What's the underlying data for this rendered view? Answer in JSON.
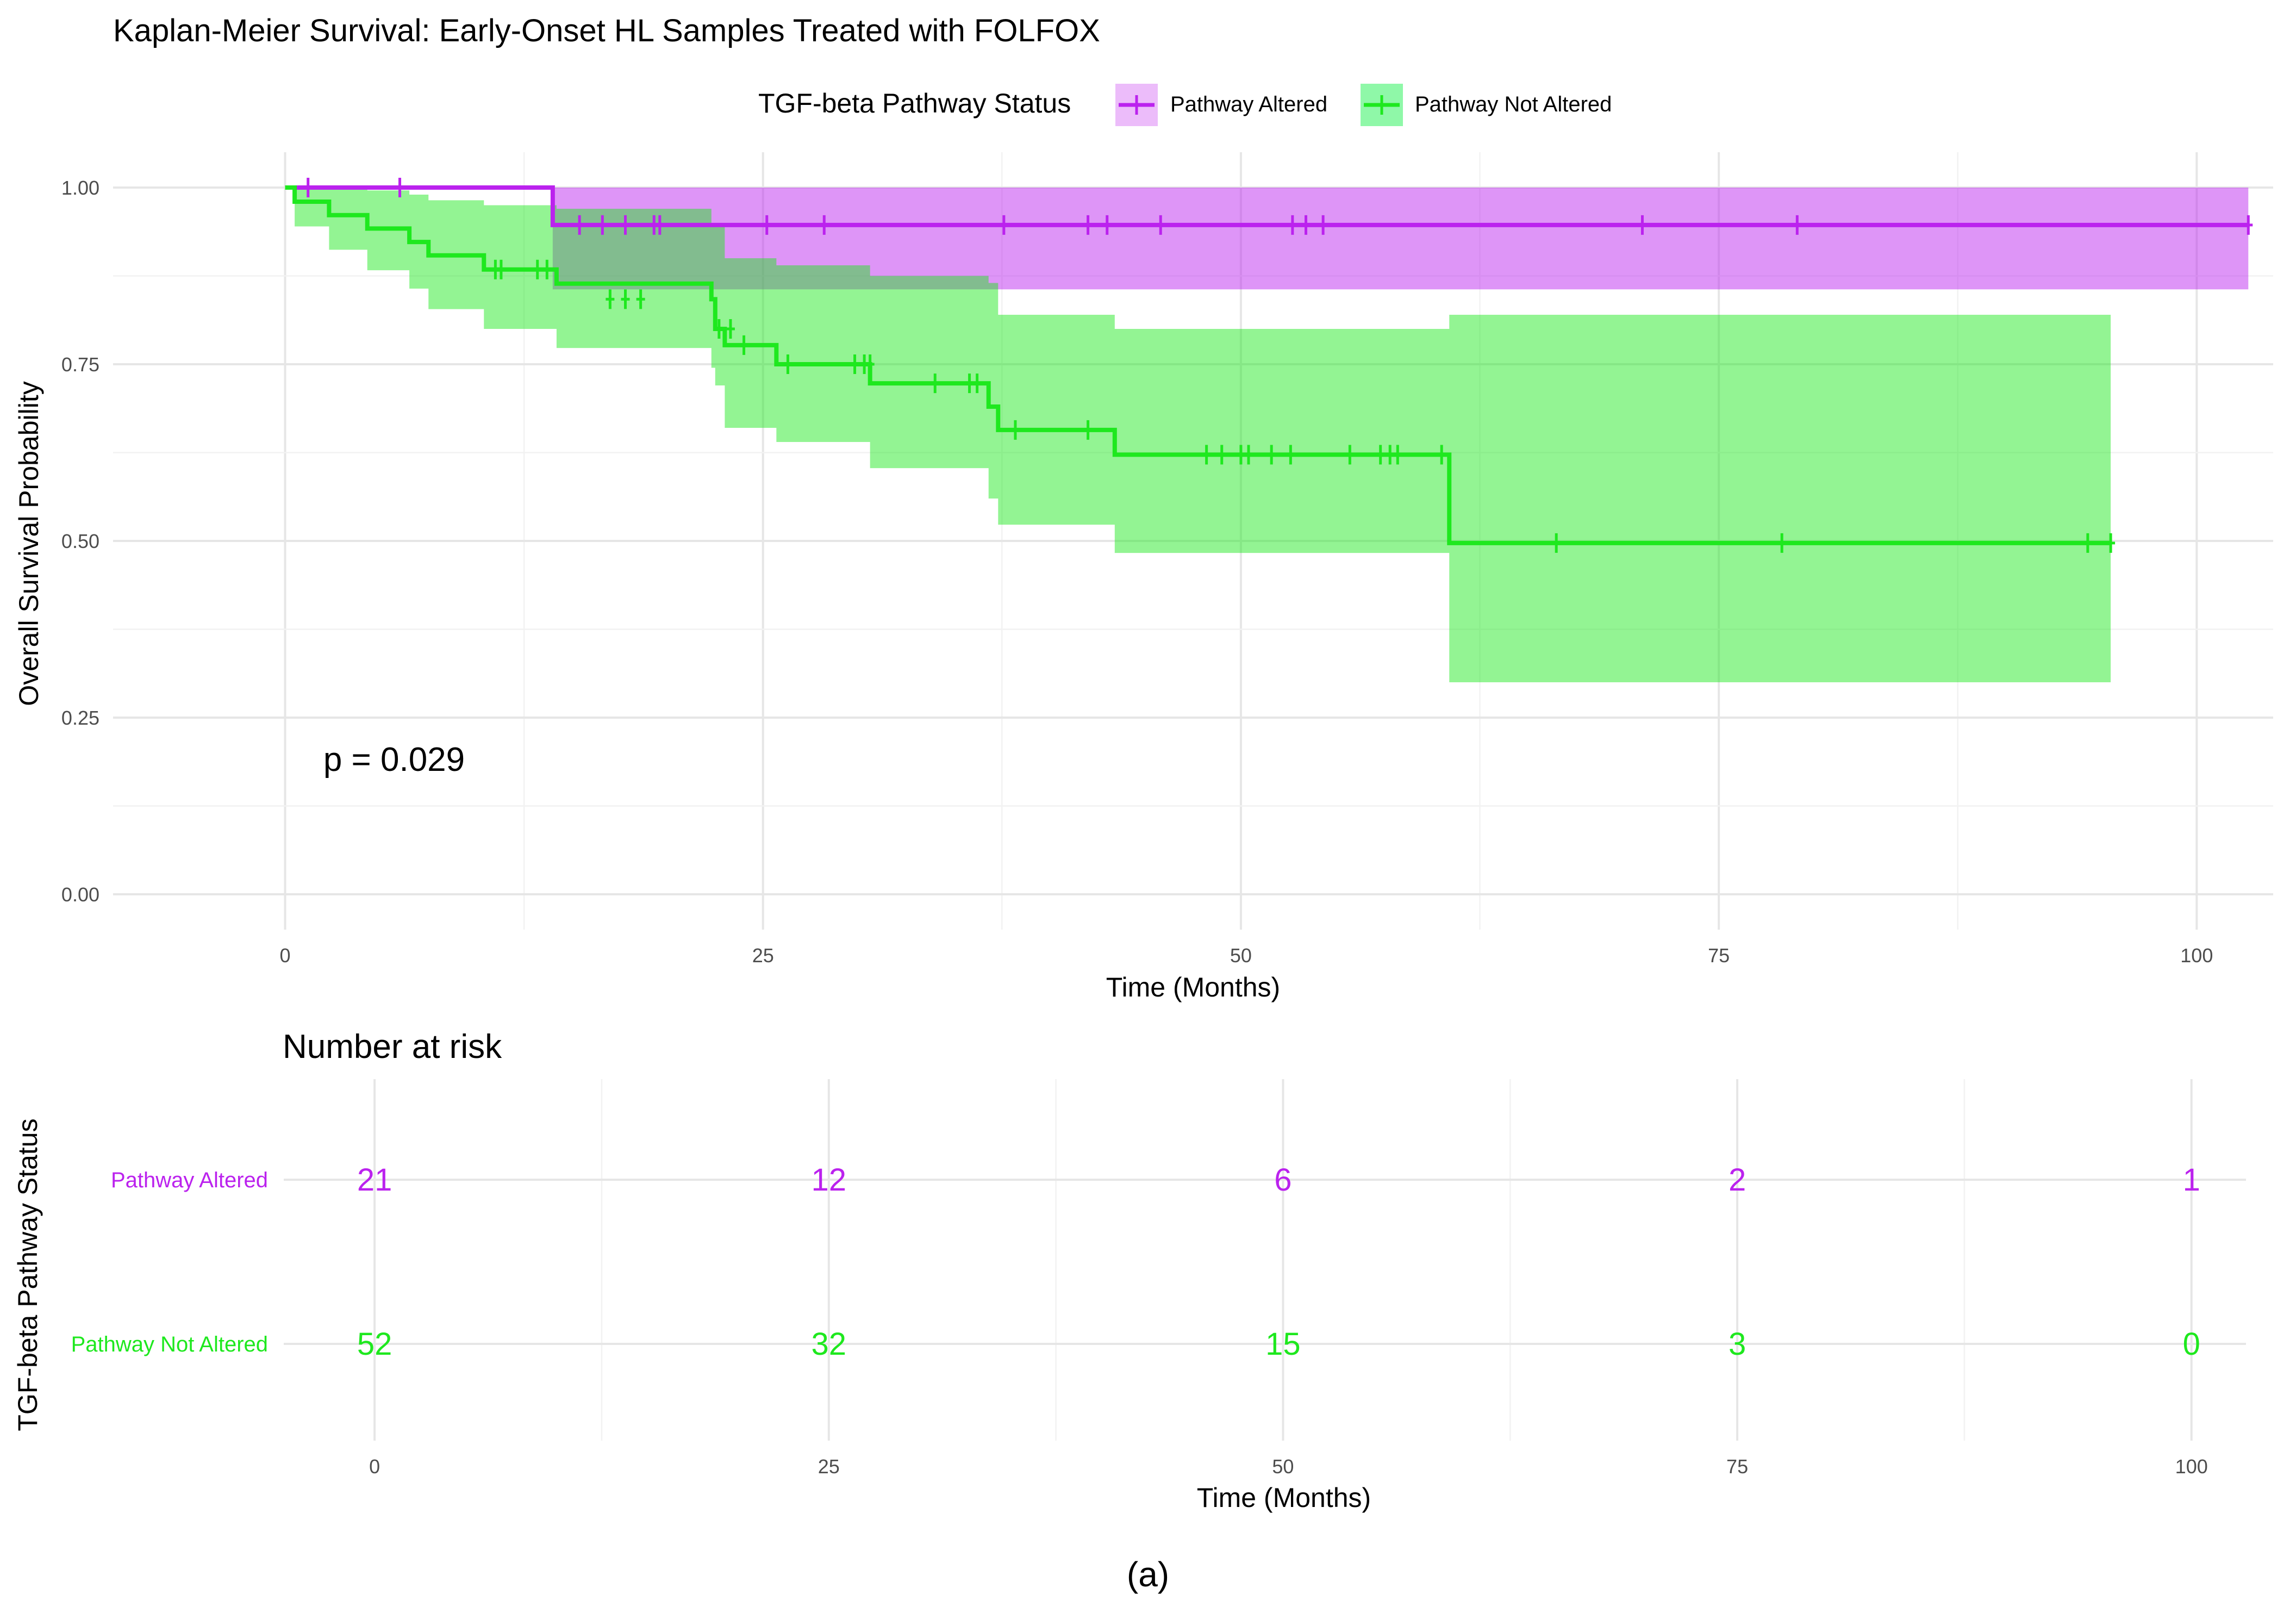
{
  "figure_label": "(a)",
  "chart_data": [
    {
      "type": "line",
      "subtype": "kaplan-meier",
      "title": "Kaplan-Meier Survival: Early-Onset HL Samples Treated with FOLFOX",
      "xlabel": "Time (Months)",
      "ylabel": "Overall Survival Probability",
      "xlim": [
        -9,
        104
      ],
      "ylim": [
        -0.05,
        1.05
      ],
      "xticks": [
        0,
        25,
        50,
        75,
        100
      ],
      "yticks": [
        0,
        0.25,
        0.5,
        0.75,
        1
      ],
      "xtick_labels": [
        "0",
        "25",
        "50",
        "75",
        "100"
      ],
      "ytick_labels": [
        "0.00",
        "0.25",
        "0.50",
        "0.75",
        "1.00"
      ],
      "grid": true,
      "legend_title": "TGF-beta Pathway Status",
      "legend_position": "top",
      "annotation": "p = 0.029",
      "annotation_pos": {
        "x": 2,
        "y": 0.19
      },
      "series": [
        {
          "name": "Pathway Altered",
          "color": "#bb22ee",
          "band_color": "#ecbcfa",
          "step_x": [
            0,
            14,
            102.7
          ],
          "step_y": [
            1.0,
            0.947,
            0.947
          ],
          "ci_x": [
            0,
            14,
            102.7
          ],
          "ci_lower": [
            1.0,
            0.856,
            0.856
          ],
          "ci_upper": [
            1.0,
            1.0,
            1.0
          ],
          "censor_x": [
            1.2,
            6,
            15.4,
            16.6,
            17.8,
            19.3,
            19.6,
            25.2,
            28.2,
            37.6,
            42,
            43,
            45.8,
            52.7,
            53.4,
            54.3,
            71,
            79.1,
            102.7
          ],
          "censor_y": [
            1.0,
            1.0,
            0.947,
            0.947,
            0.947,
            0.947,
            0.947,
            0.947,
            0.947,
            0.947,
            0.947,
            0.947,
            0.947,
            0.947,
            0.947,
            0.947,
            0.947,
            0.947,
            0.947
          ]
        },
        {
          "name": "Pathway Not Altered",
          "color": "#1ee81e",
          "band_color": "#8ff8a8",
          "step_x": [
            0,
            0.5,
            2.3,
            4.3,
            6.5,
            7.5,
            10.4,
            14.2,
            22.3,
            22.5,
            23,
            25.7,
            30.6,
            36.8,
            37.3,
            43.4,
            60.9,
            95.5
          ],
          "step_y": [
            1.0,
            0.98,
            0.961,
            0.942,
            0.923,
            0.904,
            0.884,
            0.864,
            0.842,
            0.8,
            0.777,
            0.75,
            0.723,
            0.69,
            0.657,
            0.622,
            0.497,
            0.497
          ],
          "ci_x": [
            0,
            0.5,
            2.3,
            4.3,
            6.5,
            7.5,
            10.4,
            14.2,
            22.3,
            22.5,
            23,
            25.7,
            30.6,
            36.8,
            37.3,
            43.4,
            60.9,
            95.5
          ],
          "ci_lower": [
            1.0,
            0.945,
            0.912,
            0.883,
            0.857,
            0.828,
            0.8,
            0.773,
            0.745,
            0.72,
            0.66,
            0.64,
            0.603,
            0.56,
            0.523,
            0.483,
            0.3,
            0.3
          ],
          "ci_upper": [
            1.0,
            1.0,
            1.0,
            0.996,
            0.99,
            0.982,
            0.975,
            0.97,
            0.95,
            0.945,
            0.9,
            0.89,
            0.875,
            0.865,
            0.82,
            0.8,
            0.82,
            0.82
          ],
          "censor_x": [
            11,
            11.3,
            13.2,
            13.7,
            17,
            17.8,
            18.6,
            22.7,
            23.3,
            24,
            26.3,
            29.8,
            30.3,
            30.6,
            34,
            35.8,
            36.2,
            38.2,
            42,
            48.2,
            49,
            50,
            50.4,
            51.6,
            52.6,
            55.7,
            57.3,
            57.8,
            58.2,
            60.5,
            66.5,
            78.3,
            94.3,
            95.5
          ],
          "censor_y": [
            0.884,
            0.884,
            0.884,
            0.884,
            0.842,
            0.842,
            0.842,
            0.8,
            0.8,
            0.777,
            0.75,
            0.75,
            0.75,
            0.75,
            0.723,
            0.723,
            0.723,
            0.657,
            0.657,
            0.622,
            0.622,
            0.622,
            0.622,
            0.622,
            0.622,
            0.622,
            0.622,
            0.622,
            0.622,
            0.622,
            0.497,
            0.497,
            0.497,
            0.497
          ]
        }
      ]
    },
    {
      "type": "table",
      "title": "Number at risk",
      "xlabel": "Time (Months)",
      "ylabel": "TGF-beta Pathway Status",
      "xlim": [
        -5,
        103
      ],
      "xticks": [
        0,
        25,
        50,
        75,
        100
      ],
      "xtick_labels": [
        "0",
        "25",
        "50",
        "75",
        "100"
      ],
      "rows": [
        {
          "label": "Pathway Altered",
          "color": "#bb22ee",
          "values": [
            "21",
            "12",
            "6",
            "2",
            "1"
          ]
        },
        {
          "label": "Pathway Not Altered",
          "color": "#1ee81e",
          "values": [
            "52",
            "32",
            "15",
            "3",
            "0"
          ]
        }
      ]
    }
  ]
}
